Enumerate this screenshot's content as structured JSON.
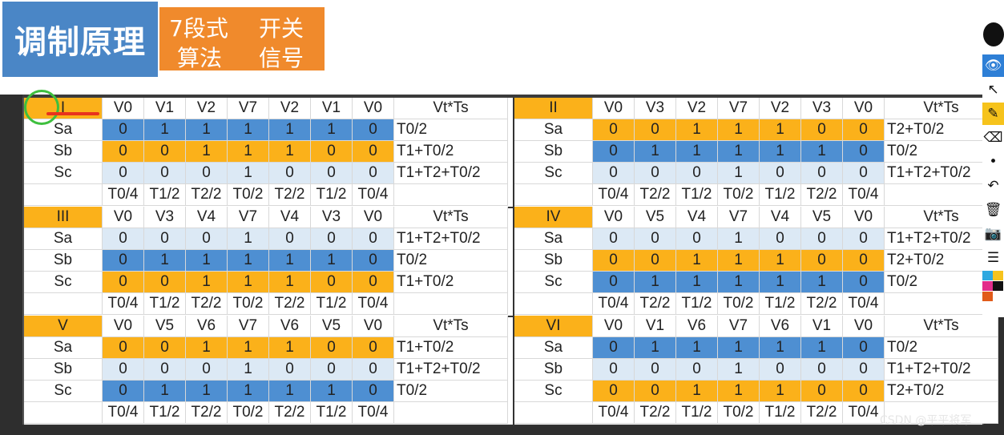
{
  "header": {
    "title": "调制原理",
    "algo_cells": [
      "7段式",
      "算法",
      "开关",
      "信号"
    ]
  },
  "sectors": [
    {
      "name": "I",
      "vectors": [
        "V0",
        "V1",
        "V2",
        "V7",
        "V2",
        "V1",
        "V0"
      ],
      "vt_header": "Vt*Ts",
      "rows": [
        {
          "label": "Sa",
          "values": [
            "0",
            "1",
            "1",
            "1",
            "1",
            "1",
            "0"
          ],
          "color": "blue",
          "vt": "T0/2"
        },
        {
          "label": "Sb",
          "values": [
            "0",
            "0",
            "1",
            "1",
            "1",
            "0",
            "0"
          ],
          "color": "orange",
          "vt": "T1+T0/2"
        },
        {
          "label": "Sc",
          "values": [
            "0",
            "0",
            "0",
            "1",
            "0",
            "0",
            "0"
          ],
          "color": "light",
          "vt": "T1+T2+T0/2"
        }
      ],
      "times": [
        "T0/4",
        "T1/2",
        "T2/2",
        "T0/2",
        "T2/2",
        "T1/2",
        "T0/4"
      ]
    },
    {
      "name": "II",
      "vectors": [
        "V0",
        "V3",
        "V2",
        "V7",
        "V2",
        "V3",
        "V0"
      ],
      "vt_header": "Vt*Ts",
      "rows": [
        {
          "label": "Sa",
          "values": [
            "0",
            "0",
            "1",
            "1",
            "1",
            "0",
            "0"
          ],
          "color": "orange",
          "vt": "T2+T0/2"
        },
        {
          "label": "Sb",
          "values": [
            "0",
            "1",
            "1",
            "1",
            "1",
            "1",
            "0"
          ],
          "color": "blue",
          "vt": "T0/2"
        },
        {
          "label": "Sc",
          "values": [
            "0",
            "0",
            "0",
            "1",
            "0",
            "0",
            "0"
          ],
          "color": "light",
          "vt": "T1+T2+T0/2"
        }
      ],
      "times": [
        "T0/4",
        "T2/2",
        "T1/2",
        "T0/2",
        "T1/2",
        "T2/2",
        "T0/4"
      ]
    },
    {
      "name": "III",
      "vectors": [
        "V0",
        "V3",
        "V4",
        "V7",
        "V4",
        "V3",
        "V0"
      ],
      "vt_header": "Vt*Ts",
      "rows": [
        {
          "label": "Sa",
          "values": [
            "0",
            "0",
            "0",
            "1",
            "0",
            "0",
            "0"
          ],
          "color": "light",
          "vt": "T1+T2+T0/2"
        },
        {
          "label": "Sb",
          "values": [
            "0",
            "1",
            "1",
            "1",
            "1",
            "1",
            "0"
          ],
          "color": "blue",
          "vt": "T0/2"
        },
        {
          "label": "Sc",
          "values": [
            "0",
            "0",
            "1",
            "1",
            "1",
            "0",
            "0"
          ],
          "color": "orange",
          "vt": "T1+T0/2"
        }
      ],
      "times": [
        "T0/4",
        "T1/2",
        "T2/2",
        "T0/2",
        "T2/2",
        "T1/2",
        "T0/4"
      ]
    },
    {
      "name": "IV",
      "vectors": [
        "V0",
        "V5",
        "V4",
        "V7",
        "V4",
        "V5",
        "V0"
      ],
      "vt_header": "Vt*Ts",
      "rows": [
        {
          "label": "Sa",
          "values": [
            "0",
            "0",
            "0",
            "1",
            "0",
            "0",
            "0"
          ],
          "color": "light",
          "vt": "T1+T2+T0/2"
        },
        {
          "label": "Sb",
          "values": [
            "0",
            "0",
            "1",
            "1",
            "1",
            "0",
            "0"
          ],
          "color": "orange",
          "vt": "T2+T0/2"
        },
        {
          "label": "Sc",
          "values": [
            "0",
            "1",
            "1",
            "1",
            "1",
            "1",
            "0"
          ],
          "color": "blue",
          "vt": "T0/2"
        }
      ],
      "times": [
        "T0/4",
        "T2/2",
        "T1/2",
        "T0/2",
        "T1/2",
        "T2/2",
        "T0/4"
      ]
    },
    {
      "name": "V",
      "vectors": [
        "V0",
        "V5",
        "V6",
        "V7",
        "V6",
        "V5",
        "V0"
      ],
      "vt_header": "Vt*Ts",
      "rows": [
        {
          "label": "Sa",
          "values": [
            "0",
            "0",
            "1",
            "1",
            "1",
            "0",
            "0"
          ],
          "color": "orange",
          "vt": "T1+T0/2"
        },
        {
          "label": "Sb",
          "values": [
            "0",
            "0",
            "0",
            "1",
            "0",
            "0",
            "0"
          ],
          "color": "light",
          "vt": "T1+T2+T0/2"
        },
        {
          "label": "Sc",
          "values": [
            "0",
            "1",
            "1",
            "1",
            "1",
            "1",
            "0"
          ],
          "color": "blue",
          "vt": "T0/2"
        }
      ],
      "times": [
        "T0/4",
        "T1/2",
        "T2/2",
        "T0/2",
        "T2/2",
        "T1/2",
        "T0/4"
      ]
    },
    {
      "name": "VI",
      "vectors": [
        "V0",
        "V1",
        "V6",
        "V7",
        "V6",
        "V1",
        "V0"
      ],
      "vt_header": "Vt*Ts",
      "rows": [
        {
          "label": "Sa",
          "values": [
            "0",
            "1",
            "1",
            "1",
            "1",
            "1",
            "0"
          ],
          "color": "blue",
          "vt": "T0/2"
        },
        {
          "label": "Sb",
          "values": [
            "0",
            "0",
            "0",
            "1",
            "0",
            "0",
            "0"
          ],
          "color": "light",
          "vt": "T1+T2+T0/2"
        },
        {
          "label": "Sc",
          "values": [
            "0",
            "0",
            "1",
            "1",
            "1",
            "0",
            "0"
          ],
          "color": "orange",
          "vt": "T2+T0/2"
        }
      ],
      "times": [
        "T0/4",
        "T2/2",
        "T1/2",
        "T0/2",
        "T1/2",
        "T2/2",
        "T0/4"
      ]
    }
  ],
  "toolbar": {
    "tools": [
      {
        "icon": "eye-icon",
        "glyph": "👁",
        "state": "active"
      },
      {
        "icon": "pointer-icon",
        "glyph": "↖",
        "state": "normal"
      },
      {
        "icon": "pen-icon",
        "glyph": "✎",
        "state": "yellow"
      },
      {
        "icon": "eraser-icon",
        "glyph": "⌫",
        "state": "normal"
      },
      {
        "icon": "dot-icon",
        "glyph": "•",
        "state": "normal"
      },
      {
        "icon": "undo-icon",
        "glyph": "↶",
        "state": "normal"
      },
      {
        "icon": "trash-icon",
        "glyph": "🗑",
        "state": "normal"
      },
      {
        "icon": "camera-icon",
        "glyph": "📷",
        "state": "normal"
      },
      {
        "icon": "notes-icon",
        "glyph": "☰",
        "state": "normal"
      }
    ],
    "swatches": [
      "#2ea8e0",
      "#f6c31c",
      "#e22d8a",
      "#111111",
      "#e15b1a"
    ]
  },
  "watermark": "CSDN @平平将军",
  "colors": {
    "blue": "#4e8fd2",
    "orange": "#fbb11a",
    "light": "#dce9f5"
  }
}
